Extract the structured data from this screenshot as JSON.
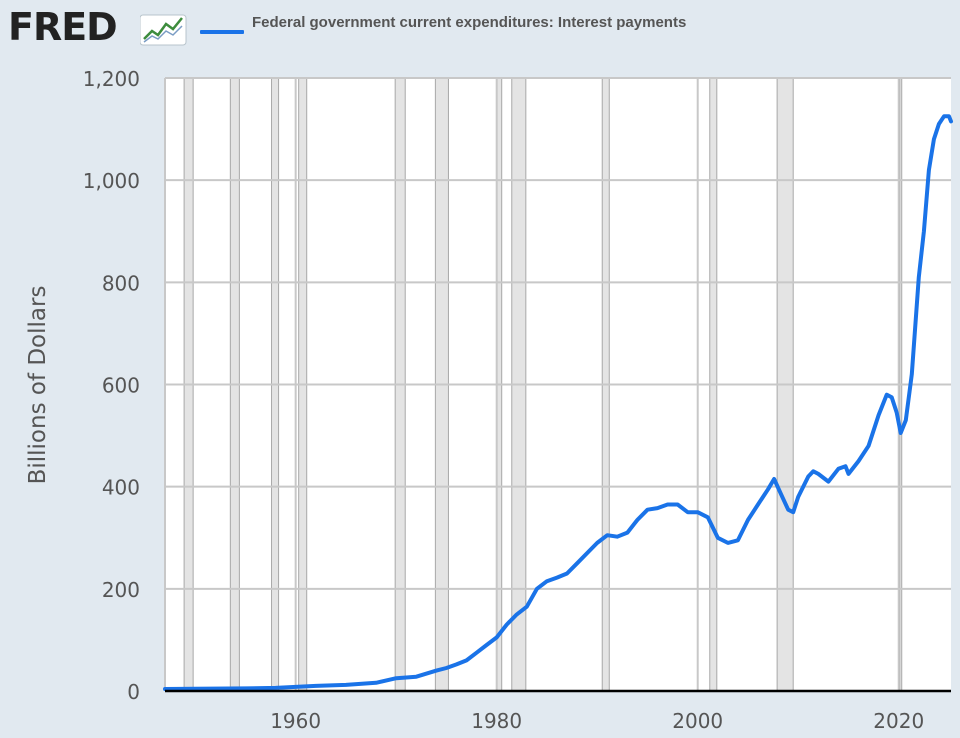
{
  "header": {
    "logo": "FRED",
    "legend_label": "Federal government current expenditures: Interest payments"
  },
  "colors": {
    "series": "#1a73e8",
    "recession_fill": "#e4e4e4",
    "grid": "#c8c8c8",
    "background": "#e1e9f0"
  },
  "chart_data": {
    "type": "line",
    "title": "",
    "xlabel": "",
    "ylabel": "Billions of Dollars",
    "xlim": [
      1947,
      2025.2
    ],
    "ylim": [
      0,
      1200
    ],
    "x_ticks": [
      {
        "value": 1960,
        "label": "1960"
      },
      {
        "value": 1980,
        "label": "1980"
      },
      {
        "value": 2000,
        "label": "2000"
      },
      {
        "value": 2020,
        "label": "2020"
      }
    ],
    "y_ticks": [
      {
        "value": 0,
        "label": "0"
      },
      {
        "value": 200,
        "label": "200"
      },
      {
        "value": 400,
        "label": "400"
      },
      {
        "value": 600,
        "label": "600"
      },
      {
        "value": 800,
        "label": "800"
      },
      {
        "value": 1000,
        "label": "1,000"
      },
      {
        "value": 1200,
        "label": "1,200"
      }
    ],
    "recessions": [
      [
        1948.9,
        1949.8
      ],
      [
        1953.5,
        1954.4
      ],
      [
        1957.6,
        1958.3
      ],
      [
        1960.3,
        1961.1
      ],
      [
        1969.9,
        1970.9
      ],
      [
        1973.9,
        1975.2
      ],
      [
        1980.0,
        1980.5
      ],
      [
        1981.5,
        1982.9
      ],
      [
        1990.5,
        1991.2
      ],
      [
        2001.2,
        2001.9
      ],
      [
        2007.9,
        2009.5
      ],
      [
        2020.1,
        2020.3
      ]
    ],
    "series": [
      {
        "name": "Federal government current expenditures: Interest payments",
        "x": [
          1947,
          1950,
          1955,
          1958,
          1960,
          1962,
          1965,
          1968,
          1970,
          1972,
          1974,
          1975,
          1976,
          1977,
          1978,
          1979,
          1980,
          1981,
          1982,
          1983,
          1984,
          1985,
          1986,
          1987,
          1988,
          1989,
          1990,
          1991,
          1992,
          1993,
          1994,
          1995,
          1996,
          1997,
          1998,
          1999,
          2000,
          2001,
          2002,
          2003,
          2004,
          2005,
          2006,
          2007,
          2007.6,
          2008.3,
          2009,
          2009.5,
          2010,
          2011,
          2011.5,
          2012,
          2013,
          2014,
          2014.7,
          2015,
          2016,
          2017,
          2018,
          2018.8,
          2019.3,
          2019.8,
          2020.2,
          2020.7,
          2021.3,
          2022,
          2022.5,
          2023,
          2023.5,
          2024,
          2024.5,
          2025,
          2025.2
        ],
        "values": [
          4,
          4.5,
          5,
          6,
          8,
          10,
          12,
          16,
          25,
          28,
          40,
          45,
          52,
          60,
          75,
          90,
          105,
          130,
          150,
          165,
          200,
          215,
          222,
          230,
          250,
          270,
          290,
          305,
          302,
          310,
          335,
          355,
          358,
          365,
          365,
          350,
          350,
          340,
          300,
          290,
          295,
          335,
          365,
          395,
          415,
          385,
          355,
          350,
          380,
          420,
          430,
          425,
          410,
          435,
          440,
          425,
          450,
          480,
          540,
          580,
          575,
          545,
          505,
          530,
          620,
          810,
          900,
          1020,
          1080,
          1110,
          1125,
          1125,
          1115
        ]
      }
    ]
  }
}
